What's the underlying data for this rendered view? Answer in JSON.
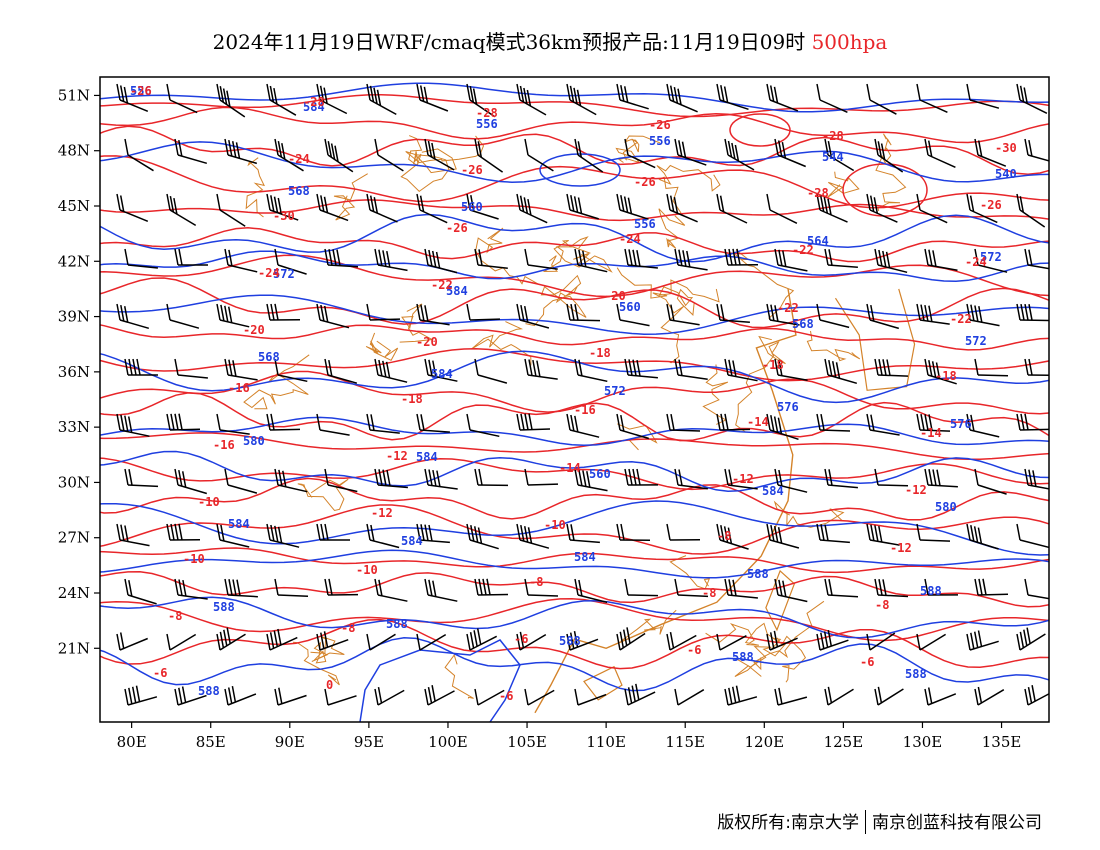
{
  "header": {
    "title": "2024年11月19日WRF/cmaq模式36km预报产品:11月19日09时",
    "level": "500hpa"
  },
  "footer": {
    "copyright": "版权所有:南京大学",
    "company": "南京创蓝科技有限公司"
  },
  "colors": {
    "height_contour": "#1f3fe0",
    "temperature_contour": "#e8262a",
    "border": "#d4832a",
    "wind_barb": "#000000"
  },
  "map": {
    "lon_range": [
      78,
      138
    ],
    "lat_range": [
      17,
      52
    ],
    "lat_ticks": [
      "51N",
      "48N",
      "45N",
      "42N",
      "39N",
      "36N",
      "33N",
      "30N",
      "27N",
      "24N",
      "21N"
    ],
    "lon_ticks": [
      "80E",
      "85E",
      "90E",
      "95E",
      "100E",
      "105E",
      "110E",
      "115E",
      "120E",
      "125E",
      "130E",
      "135E"
    ]
  },
  "height_labels": [
    "556",
    "584",
    "556",
    "556",
    "544",
    "540",
    "568",
    "560",
    "556",
    "564",
    "572",
    "572",
    "584",
    "560",
    "568",
    "572",
    "568",
    "584",
    "572",
    "576",
    "576",
    "580",
    "584",
    "560",
    "584",
    "580",
    "584",
    "584",
    "584",
    "588",
    "588",
    "588",
    "588",
    "588",
    "588",
    "588",
    "588"
  ],
  "temperature_labels": [
    "-26",
    "-28",
    "-28",
    "-26",
    "-28",
    "-30",
    "-24",
    "-26",
    "-26",
    "-28",
    "-26",
    "-30",
    "-26",
    "-24",
    "-22",
    "-24",
    "-24",
    "-22",
    "-20",
    "-22",
    "-22",
    "-20",
    "-20",
    "-18",
    "-18",
    "-18",
    "-16",
    "-18",
    "-16",
    "-14",
    "-14",
    "-16",
    "-12",
    "-14",
    "-12",
    "-12",
    "-10",
    "-12",
    "-10",
    "-8",
    "-12",
    "-10",
    "-10",
    "-8",
    "-8",
    "-8",
    "-8",
    "-8",
    "-6",
    "-6",
    "-6",
    "-6",
    "0",
    "-6"
  ]
}
